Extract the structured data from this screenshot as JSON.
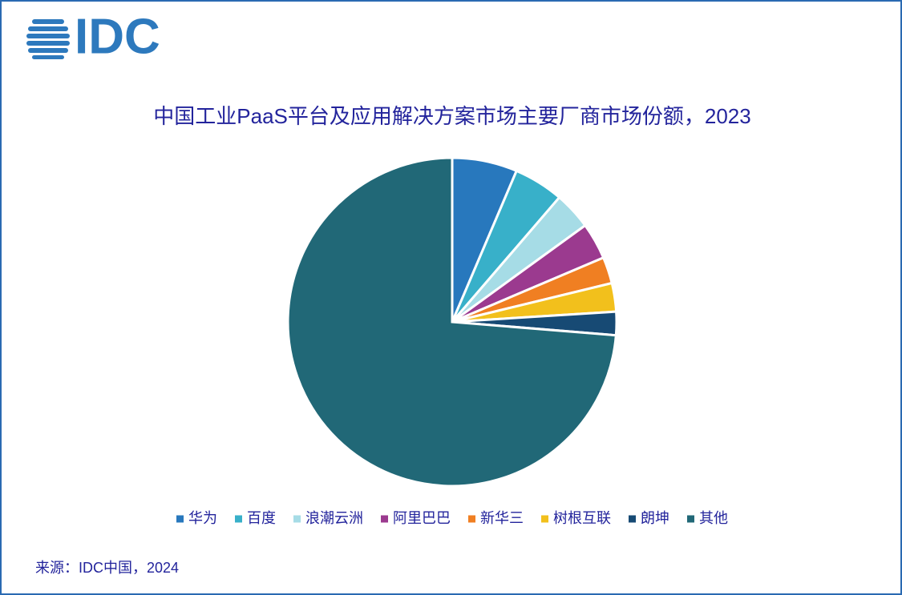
{
  "chart_data": {
    "type": "pie",
    "logo": "IDC",
    "title": "中国工业PaaS平台及应用解决方案市场主要厂商市场份额，2023",
    "categories": [
      "华为",
      "百度",
      "浪潮云洲",
      "阿里巴巴",
      "新华三",
      "树根互联",
      "朗坤",
      "其他"
    ],
    "values": [
      6.4,
      4.9,
      3.7,
      3.6,
      2.6,
      2.8,
      2.3,
      73.7
    ],
    "colors": [
      "#2878bd",
      "#38b0c9",
      "#a6dce6",
      "#9b3a8f",
      "#f07f22",
      "#f2c01c",
      "#174a74",
      "#216877"
    ],
    "legend": "bottom",
    "source": "来源：IDC中国，2024"
  }
}
